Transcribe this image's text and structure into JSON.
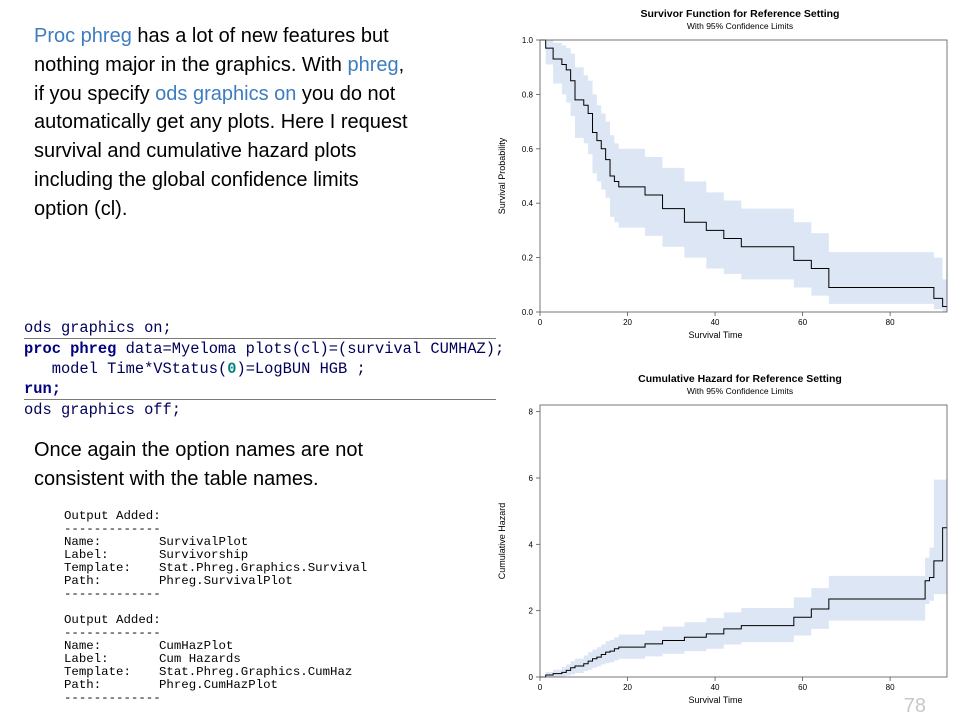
{
  "intro": {
    "t1": "Proc phreg",
    "t2": " has a lot of new features but nothing major in the graphics. With ",
    "t3": "phreg",
    "t4": ", if you specify ",
    "t5": "ods graphics on",
    "t6": " you do not automatically get any plots. Here I request survival and cumulative hazard plots including the global confidence limits option (cl)."
  },
  "code": {
    "line1": [
      "ods graphics on;"
    ],
    "line2": [
      "proc phreg",
      " data=Myeloma plots(cl)=(survival CUMHAZ);"
    ],
    "line3": [
      "   model Time*VStatus(",
      "0",
      ")=LogBUN HGB ;"
    ],
    "line4": [
      "run;"
    ],
    "line5": [
      "ods graphics off;"
    ]
  },
  "note": "Once again the option names are not consistent with the table names.",
  "log": {
    "block1": [
      {
        "k": "Output Added:",
        "v": ""
      },
      {
        "k": "-------------",
        "v": ""
      },
      {
        "k": "Name:",
        "v": "SurvivalPlot"
      },
      {
        "k": "Label:",
        "v": "Survivorship"
      },
      {
        "k": "Template:",
        "v": "Stat.Phreg.Graphics.Survival"
      },
      {
        "k": "Path:",
        "v": "Phreg.SurvivalPlot"
      },
      {
        "k": "-------------",
        "v": ""
      }
    ],
    "block2": [
      {
        "k": "Output Added:",
        "v": ""
      },
      {
        "k": "-------------",
        "v": ""
      },
      {
        "k": "Name:",
        "v": "CumHazPlot"
      },
      {
        "k": "Label:",
        "v": "Cum Hazards"
      },
      {
        "k": "Template:",
        "v": "Stat.Phreg.Graphics.CumHaz"
      },
      {
        "k": "Path:",
        "v": "Phreg.CumHazPlot"
      },
      {
        "k": "-------------",
        "v": ""
      }
    ]
  },
  "slide_number": "78",
  "chart_data": [
    {
      "type": "line",
      "title": "Survivor Function for Reference Setting",
      "subtitle": "With 95% Confidence Limits",
      "xlabel": "Survival Time",
      "ylabel": "Survival Probability",
      "xlim": [
        0,
        93
      ],
      "ylim": [
        0,
        1
      ],
      "xticks": [
        0,
        20,
        40,
        60,
        80
      ],
      "yticks": [
        0.0,
        0.2,
        0.4,
        0.6,
        0.8,
        1.0
      ],
      "ytick_labels": [
        "0.0",
        "0.2",
        "0.4",
        "0.6",
        "0.8",
        "1.0"
      ],
      "step": true,
      "band_color": "#dce6f4",
      "line_color": "#000000",
      "series": [
        {
          "role": "estimate",
          "x": [
            0,
            1.3,
            3,
            5,
            6,
            7,
            8,
            10,
            11,
            12,
            13,
            14,
            15,
            16,
            17,
            18,
            24,
            28,
            33,
            38,
            42,
            46,
            58,
            62,
            66,
            90,
            92,
            93
          ],
          "y": [
            1.0,
            0.97,
            0.93,
            0.91,
            0.89,
            0.85,
            0.78,
            0.76,
            0.73,
            0.66,
            0.63,
            0.6,
            0.56,
            0.5,
            0.48,
            0.46,
            0.43,
            0.38,
            0.33,
            0.3,
            0.27,
            0.24,
            0.19,
            0.16,
            0.09,
            0.05,
            0.02,
            0.02
          ]
        },
        {
          "role": "upper",
          "x": [
            0,
            1.3,
            3,
            5,
            6,
            7,
            8,
            10,
            11,
            12,
            13,
            14,
            15,
            16,
            17,
            18,
            24,
            28,
            33,
            38,
            42,
            46,
            58,
            62,
            66,
            90,
            92,
            93
          ],
          "y": [
            1.0,
            1.0,
            0.99,
            0.98,
            0.97,
            0.95,
            0.9,
            0.87,
            0.85,
            0.8,
            0.76,
            0.73,
            0.7,
            0.65,
            0.62,
            0.6,
            0.57,
            0.53,
            0.48,
            0.44,
            0.41,
            0.38,
            0.33,
            0.29,
            0.22,
            0.2,
            0.12,
            0.12
          ]
        },
        {
          "role": "lower",
          "x": [
            0,
            1.3,
            3,
            5,
            6,
            7,
            8,
            10,
            11,
            12,
            13,
            14,
            15,
            16,
            17,
            18,
            24,
            28,
            33,
            38,
            42,
            46,
            58,
            62,
            66,
            90,
            92,
            93
          ],
          "y": [
            1.0,
            0.91,
            0.84,
            0.8,
            0.77,
            0.72,
            0.64,
            0.62,
            0.58,
            0.51,
            0.48,
            0.45,
            0.42,
            0.35,
            0.33,
            0.31,
            0.28,
            0.24,
            0.2,
            0.16,
            0.14,
            0.12,
            0.09,
            0.06,
            0.03,
            0.01,
            0.0,
            0.0
          ]
        }
      ]
    },
    {
      "type": "line",
      "title": "Cumulative Hazard for Reference Setting",
      "subtitle": "With 95% Confidence Limits",
      "xlabel": "Survival Time",
      "ylabel": "Cumulative Hazard",
      "xlim": [
        0,
        93
      ],
      "ylim": [
        0,
        8.2
      ],
      "xticks": [
        0,
        20,
        40,
        60,
        80
      ],
      "yticks": [
        0,
        2,
        4,
        6,
        8
      ],
      "ytick_labels": [
        "0",
        "2",
        "4",
        "6",
        "8"
      ],
      "step": true,
      "band_color": "#dce6f4",
      "line_color": "#000000",
      "series": [
        {
          "role": "estimate",
          "x": [
            0,
            1.3,
            3,
            5,
            6,
            7,
            8,
            10,
            11,
            12,
            13,
            14,
            15,
            16,
            17,
            18,
            24,
            28,
            33,
            38,
            42,
            46,
            58,
            62,
            66,
            88,
            89,
            90,
            92,
            93
          ],
          "y": [
            0,
            0.06,
            0.1,
            0.14,
            0.2,
            0.28,
            0.33,
            0.4,
            0.48,
            0.55,
            0.6,
            0.68,
            0.75,
            0.78,
            0.85,
            0.9,
            1.0,
            1.1,
            1.2,
            1.3,
            1.45,
            1.55,
            1.8,
            2.05,
            2.35,
            2.9,
            3.0,
            3.5,
            4.5,
            4.5
          ]
        },
        {
          "role": "upper",
          "x": [
            0,
            1.3,
            3,
            5,
            6,
            7,
            8,
            10,
            11,
            12,
            13,
            14,
            15,
            16,
            17,
            18,
            24,
            28,
            33,
            38,
            42,
            46,
            58,
            62,
            66,
            88,
            89,
            90,
            92,
            93
          ],
          "y": [
            0,
            0.15,
            0.22,
            0.3,
            0.38,
            0.48,
            0.55,
            0.65,
            0.75,
            0.83,
            0.9,
            0.98,
            1.08,
            1.12,
            1.2,
            1.28,
            1.4,
            1.52,
            1.65,
            1.78,
            1.95,
            2.08,
            2.4,
            2.68,
            3.05,
            3.6,
            3.9,
            5.95,
            5.95,
            5.95
          ]
        },
        {
          "role": "lower",
          "x": [
            0,
            1.3,
            3,
            5,
            6,
            7,
            8,
            10,
            11,
            12,
            13,
            14,
            15,
            16,
            17,
            18,
            24,
            28,
            33,
            38,
            42,
            46,
            58,
            62,
            66,
            88,
            89,
            90,
            92,
            93
          ],
          "y": [
            0,
            0,
            0,
            0.02,
            0.04,
            0.08,
            0.12,
            0.18,
            0.22,
            0.28,
            0.32,
            0.38,
            0.42,
            0.45,
            0.5,
            0.55,
            0.62,
            0.7,
            0.78,
            0.85,
            0.98,
            1.05,
            1.25,
            1.45,
            1.7,
            2.2,
            2.3,
            2.5,
            2.5,
            2.5
          ]
        }
      ]
    }
  ]
}
